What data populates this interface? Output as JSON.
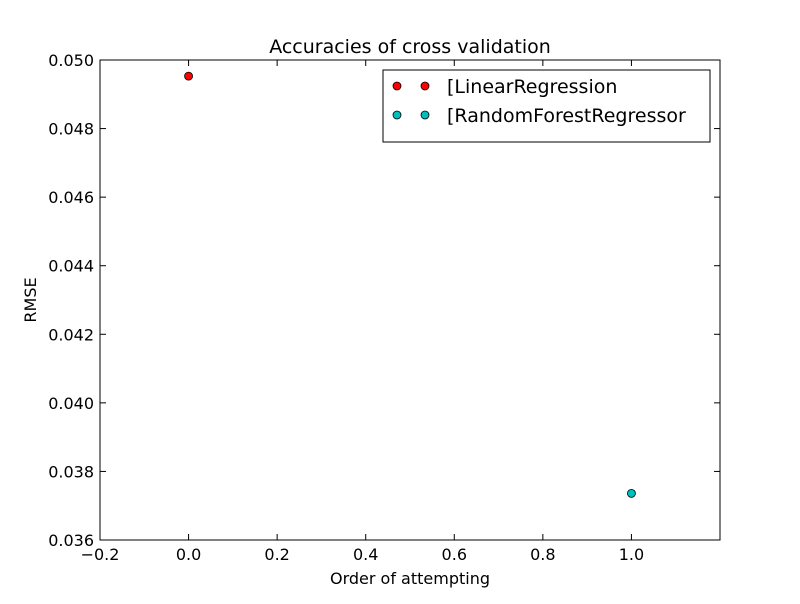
{
  "chart_data": {
    "type": "scatter",
    "title": "Accuracies of cross validation",
    "xlabel": "Order of attempting",
    "ylabel": "RMSE",
    "xlim": [
      -0.2,
      1.2
    ],
    "ylim": [
      0.036,
      0.05
    ],
    "xticks": [
      "−0.2",
      "0.0",
      "0.2",
      "0.4",
      "0.6",
      "0.8",
      "1.0"
    ],
    "yticks": [
      "0.036",
      "0.038",
      "0.040",
      "0.042",
      "0.044",
      "0.046",
      "0.048",
      "0.050"
    ],
    "grid": false,
    "legend_position": "top-right",
    "series": [
      {
        "name": "[LinearRegression",
        "color": "#ff0000",
        "points": [
          {
            "x": 0.0,
            "y": 0.04953
          }
        ]
      },
      {
        "name": "[RandomForestRegressor",
        "color": "#00bfbf",
        "points": [
          {
            "x": 1.0,
            "y": 0.03736
          }
        ]
      }
    ]
  }
}
